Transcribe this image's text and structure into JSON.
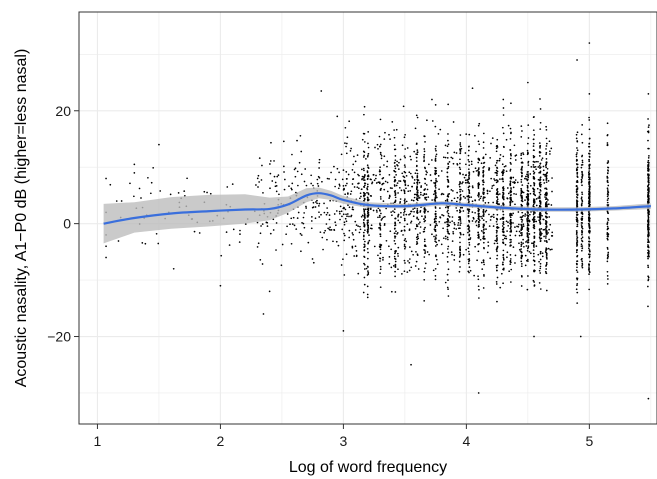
{
  "chart_data": {
    "type": "scatter",
    "title": "",
    "xlabel": "Log of word frequency",
    "ylabel": "Acoustic nasality, A1−P0 dB (higher=less nasal)",
    "xlim": [
      0.85,
      5.55
    ],
    "ylim": [
      -35.5,
      37.5
    ],
    "x_ticks": [
      1,
      2,
      3,
      4,
      5
    ],
    "x_tick_labels": [
      "1",
      "2",
      "3",
      "4",
      "5"
    ],
    "y_ticks": [
      -20,
      0,
      20
    ],
    "y_tick_labels": [
      "−20",
      "0",
      "20"
    ],
    "grid": true,
    "legend": "none",
    "colors": {
      "points": "#000000",
      "smooth_line": "#3a6fdc",
      "confidence_band": "#bdbdbd",
      "grid": "#ebebeb",
      "panel_border": "#333333"
    },
    "series": [
      {
        "type": "scatter",
        "description_of_points": "thousands of individual word tokens; dense vertical columns at higher frequencies",
        "points_sample": [
          [
            1.07,
            8
          ],
          [
            1.07,
            2
          ],
          [
            1.07,
            -2
          ],
          [
            1.07,
            -4
          ],
          [
            1.07,
            -6
          ],
          [
            1.3,
            10.5
          ],
          [
            1.3,
            9
          ],
          [
            1.38,
            1
          ],
          [
            1.5,
            14
          ],
          [
            1.58,
            2
          ],
          [
            1.62,
            -8
          ],
          [
            2.0,
            -11
          ],
          [
            2.08,
            3
          ],
          [
            2.1,
            7
          ],
          [
            2.35,
            -16
          ],
          [
            2.4,
            -12
          ],
          [
            2.82,
            23.5
          ],
          [
            2.95,
            19
          ],
          [
            3.0,
            -19
          ],
          [
            3.55,
            -25
          ],
          [
            3.72,
            22
          ],
          [
            4.05,
            24
          ],
          [
            4.1,
            -30
          ],
          [
            4.3,
            22
          ],
          [
            4.5,
            25
          ],
          [
            4.55,
            -20
          ],
          [
            4.9,
            29
          ],
          [
            4.93,
            -20
          ],
          [
            5.0,
            32
          ],
          [
            5.0,
            23
          ],
          [
            5.48,
            -31
          ],
          [
            5.48,
            23
          ]
        ]
      },
      {
        "type": "smooth",
        "name": "",
        "x": [
          1.05,
          1.3,
          1.6,
          1.9,
          2.2,
          2.4,
          2.55,
          2.7,
          2.8,
          2.9,
          3.0,
          3.2,
          3.5,
          3.8,
          4.0,
          4.3,
          4.6,
          4.9,
          5.2,
          5.5
        ],
        "y": [
          0.0,
          1.0,
          1.8,
          2.2,
          2.5,
          2.6,
          3.4,
          5.0,
          5.4,
          5.0,
          4.2,
          3.3,
          3.1,
          3.6,
          3.3,
          2.8,
          2.5,
          2.5,
          2.7,
          3.1
        ],
        "ci_lower": [
          -3.5,
          -1.6,
          -0.9,
          -0.5,
          0.0,
          0.6,
          1.9,
          3.8,
          4.5,
          4.2,
          3.5,
          2.8,
          2.7,
          3.2,
          2.9,
          2.4,
          2.1,
          2.1,
          2.3,
          2.6
        ],
        "ci_upper": [
          3.5,
          3.8,
          4.7,
          5.1,
          5.2,
          4.6,
          4.8,
          6.3,
          6.4,
          5.8,
          4.9,
          3.8,
          3.5,
          4.0,
          3.7,
          3.2,
          2.9,
          2.9,
          3.1,
          3.6
        ]
      }
    ]
  }
}
